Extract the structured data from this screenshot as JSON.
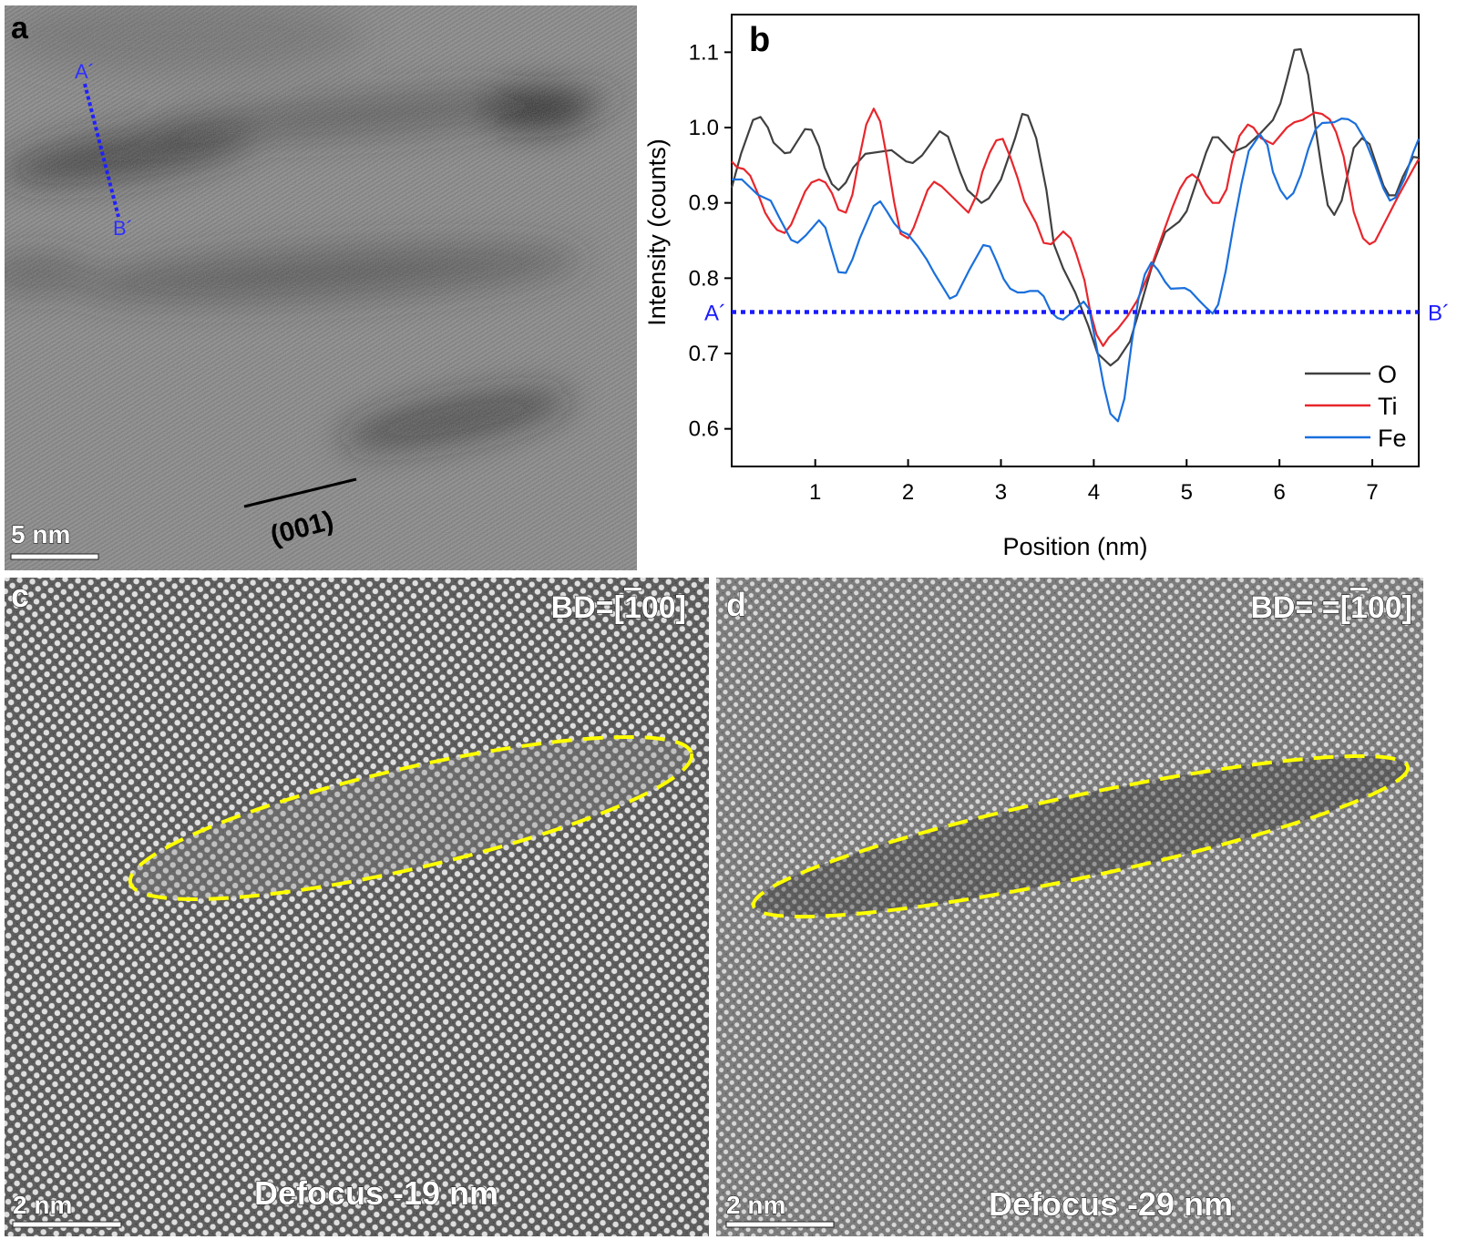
{
  "panels": {
    "a": {
      "letter": "a",
      "scale_bar": "5 nm",
      "plane_label": "(001)",
      "line_start": "A´",
      "line_end": "B´"
    },
    "b": {
      "letter": "b"
    },
    "c": {
      "letter": "c",
      "bd_prefix": "BD=[",
      "bd_bar_digit": "1",
      "bd_suffix": "00]",
      "defocus": "Defocus -19 nm",
      "scale_bar": "2 nm"
    },
    "d": {
      "letter": "d",
      "bd_prefix": "BD= =[",
      "bd_bar_digit": "1",
      "bd_suffix": "00]",
      "defocus": "Defocus -29 nm",
      "scale_bar": "2 nm"
    }
  },
  "colors": {
    "O": "#404040",
    "Ti": "#e8262c",
    "Fe": "#1a6fdc",
    "profile_line": "#1a1aff",
    "highlight": "#ffff00"
  },
  "chart_data": {
    "type": "line",
    "xlabel": "Position (nm)",
    "ylabel": "Intensity (counts)",
    "xlim": [
      0.1,
      7.5
    ],
    "ylim": [
      0.55,
      1.15
    ],
    "xticks": [
      "1",
      "2",
      "3",
      "4",
      "5",
      "6",
      "7"
    ],
    "yticks": [
      "0.6",
      "0.7",
      "0.8",
      "0.9",
      "1.0",
      "1.1"
    ],
    "legend_position": "bottom-right",
    "reference_line": {
      "y": 0.755,
      "start_label": "A´",
      "end_label": "B´"
    },
    "series": [
      {
        "name": "O",
        "x": [
          0.1,
          0.2,
          0.33,
          0.41,
          0.49,
          0.55,
          0.67,
          0.73,
          0.89,
          0.96,
          1.04,
          1.1,
          1.18,
          1.25,
          1.33,
          1.41,
          1.54,
          1.82,
          1.98,
          2.05,
          2.15,
          2.34,
          2.43,
          2.56,
          2.64,
          2.79,
          2.87,
          3.0,
          3.15,
          3.23,
          3.29,
          3.38,
          3.49,
          3.57,
          3.67,
          3.8,
          3.94,
          4.04,
          4.18,
          4.26,
          4.39,
          4.49,
          4.62,
          4.77,
          4.92,
          5.0,
          5.12,
          5.21,
          5.28,
          5.34,
          5.49,
          5.64,
          5.8,
          5.93,
          6.01,
          6.08,
          6.16,
          6.23,
          6.31,
          6.39,
          6.46,
          6.52,
          6.59,
          6.67,
          6.8,
          6.89,
          6.97,
          7.12,
          7.18,
          7.25,
          7.33,
          7.44,
          7.5
        ],
        "y": [
          0.92,
          0.965,
          1.01,
          1.014,
          1.0,
          0.98,
          0.966,
          0.967,
          0.998,
          0.997,
          0.975,
          0.947,
          0.925,
          0.917,
          0.927,
          0.947,
          0.965,
          0.97,
          0.955,
          0.953,
          0.963,
          0.995,
          0.988,
          0.941,
          0.917,
          0.9,
          0.906,
          0.931,
          0.985,
          1.018,
          1.016,
          0.986,
          0.917,
          0.845,
          0.813,
          0.781,
          0.737,
          0.7,
          0.684,
          0.692,
          0.716,
          0.757,
          0.813,
          0.861,
          0.875,
          0.889,
          0.933,
          0.967,
          0.987,
          0.987,
          0.967,
          0.975,
          0.993,
          1.01,
          1.032,
          1.064,
          1.103,
          1.104,
          1.07,
          0.998,
          0.941,
          0.897,
          0.884,
          0.903,
          0.973,
          0.986,
          0.978,
          0.923,
          0.91,
          0.91,
          0.935,
          0.961,
          0.96
        ]
      },
      {
        "name": "Ti",
        "x": [
          0.1,
          0.16,
          0.23,
          0.3,
          0.38,
          0.46,
          0.53,
          0.59,
          0.67,
          0.74,
          0.89,
          0.96,
          1.04,
          1.11,
          1.18,
          1.25,
          1.33,
          1.4,
          1.47,
          1.55,
          1.63,
          1.7,
          1.77,
          1.85,
          1.92,
          2.0,
          2.06,
          2.21,
          2.28,
          2.36,
          2.65,
          2.74,
          2.8,
          2.88,
          2.95,
          3.02,
          3.1,
          3.18,
          3.25,
          3.38,
          3.46,
          3.54,
          3.67,
          3.75,
          3.81,
          3.9,
          3.96,
          4.03,
          4.1,
          4.16,
          4.26,
          4.36,
          4.47,
          4.59,
          4.75,
          4.85,
          4.93,
          5.0,
          5.06,
          5.13,
          5.21,
          5.28,
          5.35,
          5.43,
          5.49,
          5.57,
          5.66,
          5.72,
          5.8,
          5.93,
          6.08,
          6.16,
          6.25,
          6.38,
          6.46,
          6.54,
          6.61,
          6.69,
          6.8,
          6.9,
          6.97,
          7.03,
          7.13,
          7.28,
          7.44,
          7.5
        ],
        "y": [
          0.955,
          0.947,
          0.945,
          0.936,
          0.913,
          0.887,
          0.873,
          0.864,
          0.86,
          0.871,
          0.915,
          0.927,
          0.931,
          0.927,
          0.913,
          0.891,
          0.887,
          0.911,
          0.957,
          1.004,
          1.025,
          1.008,
          0.961,
          0.901,
          0.859,
          0.853,
          0.867,
          0.917,
          0.928,
          0.922,
          0.887,
          0.911,
          0.941,
          0.967,
          0.983,
          0.985,
          0.961,
          0.933,
          0.903,
          0.873,
          0.847,
          0.845,
          0.862,
          0.853,
          0.833,
          0.797,
          0.757,
          0.725,
          0.71,
          0.721,
          0.733,
          0.749,
          0.771,
          0.805,
          0.861,
          0.895,
          0.919,
          0.933,
          0.938,
          0.931,
          0.911,
          0.9,
          0.9,
          0.918,
          0.955,
          0.989,
          1.004,
          1.0,
          0.986,
          0.978,
          1.0,
          1.007,
          1.01,
          1.02,
          1.018,
          1.011,
          0.994,
          0.962,
          0.888,
          0.853,
          0.845,
          0.849,
          0.873,
          0.909,
          0.945,
          0.958
        ]
      },
      {
        "name": "Fe",
        "x": [
          0.1,
          0.21,
          0.38,
          0.52,
          0.61,
          0.74,
          0.81,
          0.9,
          1.04,
          1.11,
          1.18,
          1.25,
          1.33,
          1.4,
          1.48,
          1.63,
          1.7,
          1.77,
          1.85,
          1.93,
          2.0,
          2.1,
          2.2,
          2.28,
          2.38,
          2.45,
          2.52,
          2.66,
          2.81,
          2.88,
          2.95,
          3.03,
          3.1,
          3.18,
          3.25,
          3.31,
          3.4,
          3.46,
          3.54,
          3.61,
          3.67,
          3.75,
          3.89,
          3.95,
          4.03,
          4.11,
          4.18,
          4.26,
          4.33,
          4.41,
          4.48,
          4.55,
          4.62,
          4.69,
          4.77,
          4.83,
          4.98,
          5.04,
          5.13,
          5.21,
          5.28,
          5.34,
          5.42,
          5.51,
          5.59,
          5.67,
          5.79,
          5.87,
          5.93,
          6.01,
          6.08,
          6.15,
          6.23,
          6.31,
          6.39,
          6.46,
          6.59,
          6.67,
          6.74,
          6.82,
          6.92,
          7.02,
          7.12,
          7.19,
          7.25,
          7.35,
          7.44,
          7.5
        ],
        "y": [
          0.931,
          0.931,
          0.911,
          0.903,
          0.881,
          0.851,
          0.847,
          0.857,
          0.877,
          0.867,
          0.837,
          0.808,
          0.807,
          0.825,
          0.853,
          0.896,
          0.902,
          0.889,
          0.873,
          0.862,
          0.858,
          0.843,
          0.825,
          0.807,
          0.787,
          0.773,
          0.777,
          0.811,
          0.844,
          0.842,
          0.823,
          0.799,
          0.786,
          0.781,
          0.781,
          0.783,
          0.783,
          0.776,
          0.755,
          0.747,
          0.745,
          0.753,
          0.769,
          0.759,
          0.709,
          0.656,
          0.62,
          0.61,
          0.64,
          0.716,
          0.772,
          0.805,
          0.821,
          0.811,
          0.795,
          0.786,
          0.787,
          0.783,
          0.771,
          0.761,
          0.753,
          0.765,
          0.809,
          0.873,
          0.925,
          0.969,
          0.991,
          0.977,
          0.941,
          0.917,
          0.905,
          0.913,
          0.937,
          0.971,
          0.998,
          1.006,
          1.007,
          1.012,
          1.011,
          1.005,
          0.984,
          0.953,
          0.919,
          0.903,
          0.907,
          0.933,
          0.967,
          0.985
        ]
      }
    ]
  }
}
